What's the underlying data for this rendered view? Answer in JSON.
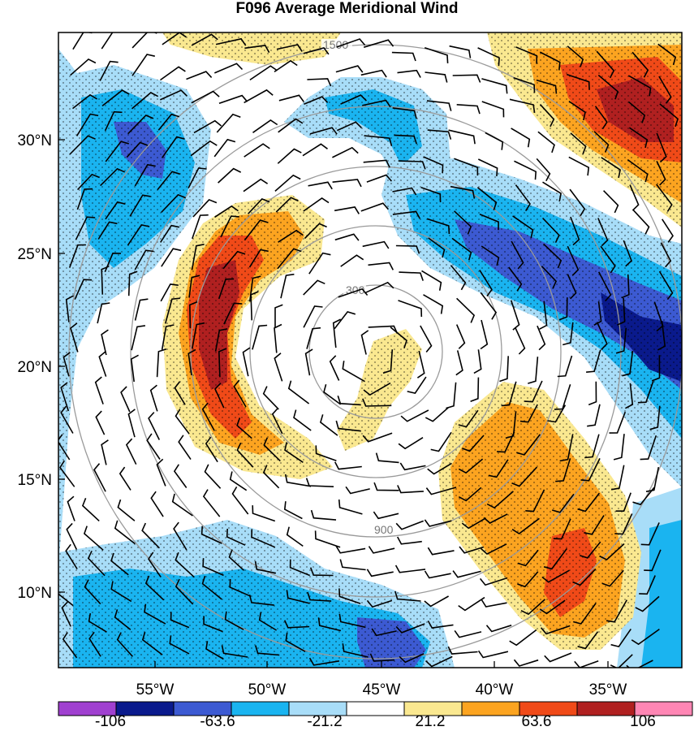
{
  "title": "F096 Average Meridional Wind",
  "axes": {
    "lat_labels": [
      "30°N",
      "25°N",
      "20°N",
      "15°N",
      "10°N"
    ],
    "lon_labels": [
      "55°W",
      "50°W",
      "45°W",
      "40°W",
      "35°W"
    ]
  },
  "range_rings": [
    "300",
    "900",
    "1500"
  ],
  "colorbar": {
    "labels": [
      "-106",
      "-63.6",
      "-21.2",
      "21.2",
      "63.6",
      "106"
    ],
    "colors": [
      "#a040d0",
      "#0a1a8c",
      "#3c5ad2",
      "#1ab4f0",
      "#a8ddf8",
      "#ffffff",
      "#fae890",
      "#fca420",
      "#f04a18",
      "#b02020",
      "#ff86b4"
    ]
  },
  "palette": {
    "strong_negative": "#3c5ad2",
    "moderate_negative": "#1ab4f0",
    "weak_negative": "#a8ddf8",
    "weak_positive": "#fae890",
    "moderate_positive": "#fca420",
    "strong_positive": "#f04a18",
    "extreme_positive": "#b02020",
    "extreme_negative": "#0a1a8c"
  }
}
